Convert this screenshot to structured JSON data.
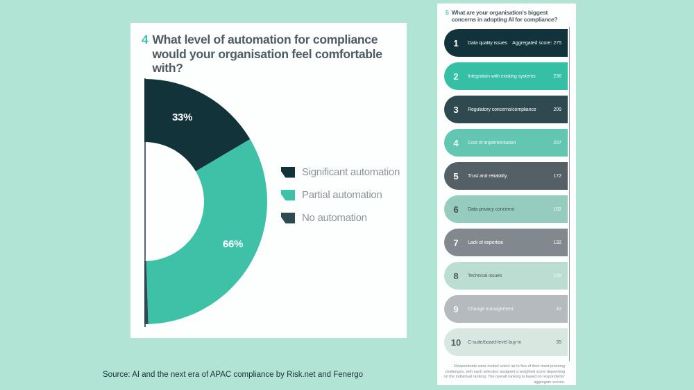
{
  "page": {
    "background_color": "#b2e4d6",
    "source_line": "Source: AI and the next era of APAC compliance by Risk.net and Fenergo"
  },
  "donut_panel": {
    "question_number": "4",
    "title": "What level of automation for compliance would your organisation feel comfortable with?",
    "slice_label_significant": "33%",
    "slice_label_partial": "66%",
    "legend": [
      {
        "label": "Significant automation",
        "color": "#13333b"
      },
      {
        "label": "Partial automation",
        "color": "#3fc1a7"
      },
      {
        "label": "No automation",
        "color": "#2e4a50"
      }
    ]
  },
  "ranking_panel": {
    "question_number": "5",
    "title": "What are your organisation's biggest concerns in adopting AI for compliance?",
    "items": [
      {
        "rank": 1,
        "label": "Data quality issues",
        "score": 275,
        "score_prefix": "Aggregated score: ",
        "bar_color": "#12333b",
        "text_color": "#ffffff",
        "score_color": "#ffffff"
      },
      {
        "rank": 2,
        "label": "Integration with existing systems",
        "score": 236,
        "score_prefix": "",
        "bar_color": "#35bfa4",
        "text_color": "#f2fbf8",
        "score_color": "#f2fbf8"
      },
      {
        "rank": 3,
        "label": "Regulatory concerns/compliance",
        "score": 209,
        "score_prefix": "",
        "bar_color": "#2e4a50",
        "text_color": "#ffffff",
        "score_color": "#ffffff"
      },
      {
        "rank": 4,
        "label": "Cost of implementation",
        "score": 207,
        "score_prefix": "",
        "bar_color": "#62c6b0",
        "text_color": "#f2fbf8",
        "score_color": "#f2fbf8"
      },
      {
        "rank": 5,
        "label": "Trust and reliability",
        "score": 172,
        "score_prefix": "",
        "bar_color": "#556066",
        "text_color": "#ffffff",
        "score_color": "#ffffff"
      },
      {
        "rank": 6,
        "label": "Data privacy concerns",
        "score": 162,
        "score_prefix": "",
        "bar_color": "#95ccbd",
        "text_color": "#3e4c54",
        "score_color": "#f5fbf8"
      },
      {
        "rank": 7,
        "label": "Lack of expertise",
        "score": 132,
        "score_prefix": "",
        "bar_color": "#82898e",
        "text_color": "#ffffff",
        "score_color": "#ffffff"
      },
      {
        "rank": 8,
        "label": "Technical issues",
        "score": 100,
        "score_prefix": "",
        "bar_color": "#bcded2",
        "text_color": "#4a565c",
        "score_color": "#f7fcfa"
      },
      {
        "rank": 9,
        "label": "Change management",
        "score": 42,
        "score_prefix": "",
        "bar_color": "#b4babd",
        "text_color": "#f4f6f6",
        "score_color": "#f4f6f6"
      },
      {
        "rank": 10,
        "label": "C-suite/board-level buy-in",
        "score": 35,
        "score_prefix": "",
        "bar_color": "#d8e8e0",
        "text_color": "#55616a",
        "score_color": "#55616a"
      }
    ],
    "footnote": "Respondents were invited select up to five of their most pressing challenges, with each selection assigned a weighted score depending on the individual ranking. The overall ranking is based on respondents' aggregate scores."
  },
  "chart_data": [
    {
      "type": "pie",
      "variant": "half-donut-opening-right",
      "question_number": "4",
      "title": "What level of automation for compliance would your organisation feel comfortable with?",
      "slices": [
        {
          "label": "Significant automation",
          "value": 33,
          "data_label": "33%",
          "color": "#13333b"
        },
        {
          "label": "Partial automation",
          "value": 66,
          "data_label": "66%",
          "color": "#3fc1a7"
        },
        {
          "label": "No automation",
          "value": 1,
          "data_label": "",
          "color": "#2e4a50"
        }
      ],
      "total": 100,
      "legend_position": "right"
    },
    {
      "type": "bar",
      "variant": "ranked-horizontal",
      "question_number": "5",
      "title": "What are your organisation's biggest concerns in adopting AI for compliance?",
      "categories": [
        "Data quality issues",
        "Integration with existing systems",
        "Regulatory concerns/compliance",
        "Cost of implementation",
        "Trust and reliability",
        "Data privacy concerns",
        "Lack of expertise",
        "Technical issues",
        "Change management",
        "C-suite/board-level buy-in"
      ],
      "values": [
        275,
        236,
        209,
        207,
        172,
        162,
        132,
        100,
        42,
        35
      ],
      "value_label_note": "Aggregated score shown on rank 1 only"
    }
  ]
}
